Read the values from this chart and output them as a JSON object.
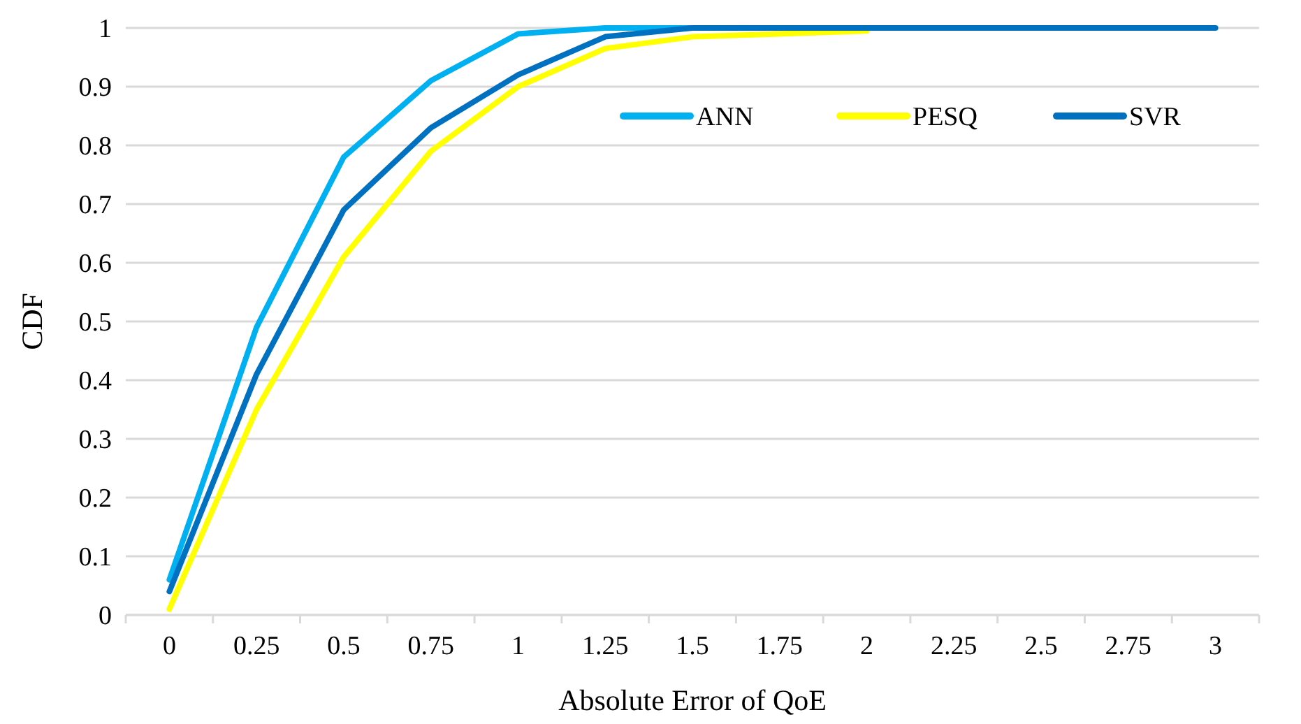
{
  "chart_data": {
    "type": "line",
    "xlabel": "Absolute Error of QoE",
    "ylabel": "CDF",
    "categories": [
      "0",
      "0.25",
      "0.5",
      "0.75",
      "1",
      "1.25",
      "1.5",
      "1.75",
      "2",
      "2.25",
      "2.5",
      "2.75",
      "3"
    ],
    "series": [
      {
        "name": "ANN",
        "color": "#00b0f0",
        "values": [
          0.06,
          0.49,
          0.78,
          0.91,
          0.99,
          1,
          1,
          1,
          null,
          null,
          null,
          null,
          null
        ]
      },
      {
        "name": "PESQ",
        "color": "#ffff00",
        "values": [
          0.01,
          0.35,
          0.61,
          0.79,
          0.9,
          0.965,
          0.985,
          0.99,
          0.995,
          null,
          null,
          null,
          null
        ]
      },
      {
        "name": "SVR",
        "color": "#0070c0",
        "values": [
          0.04,
          0.41,
          0.69,
          0.83,
          0.92,
          0.985,
          1,
          1,
          1,
          1,
          1,
          1,
          1
        ]
      }
    ],
    "ylim": [
      0,
      1
    ],
    "yticks": [
      0,
      0.1,
      0.2,
      0.3,
      0.4,
      0.5,
      0.6,
      0.7,
      0.8,
      0.9,
      1
    ],
    "grid": "y",
    "legend": "top right",
    "marker": "none",
    "line_style": "solid"
  }
}
